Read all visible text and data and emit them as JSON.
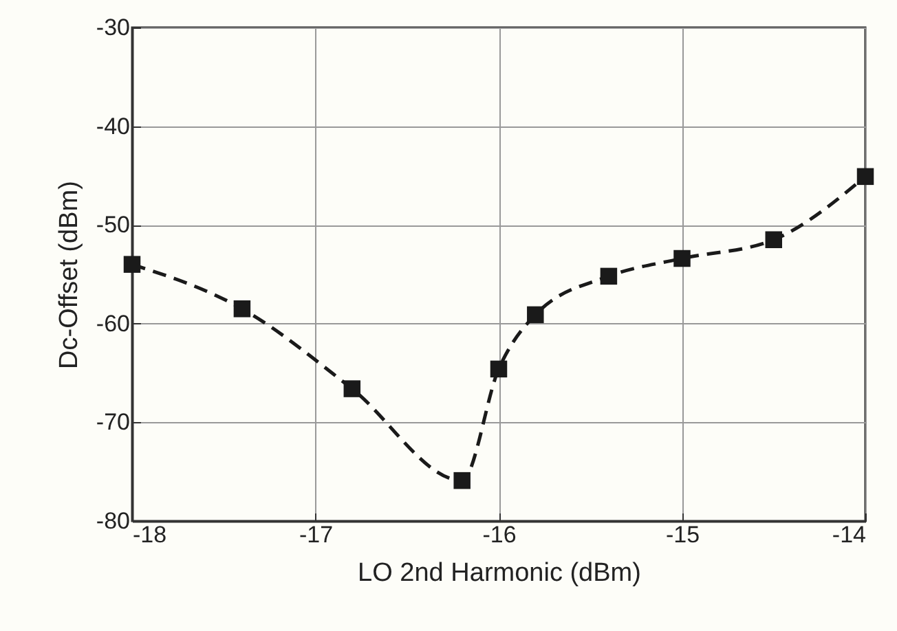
{
  "chart_data": {
    "type": "line",
    "xlabel": "LO 2nd Harmonic (dBm)",
    "ylabel": "Dc-Offset (dBm)",
    "x": [
      -18,
      -17.4,
      -16.8,
      -16.2,
      -16,
      -15.8,
      -15.4,
      -15,
      -14.5,
      -14
    ],
    "series": [
      {
        "color": "#1a1a1a",
        "values": [
          -54.0,
          -58.5,
          -66.6,
          -75.9,
          -64.6,
          -59.1,
          -55.2,
          -53.4,
          -51.5,
          -45.1
        ]
      }
    ],
    "xlim": [
      -18,
      -14
    ],
    "xticks": [
      -18,
      -17,
      -16,
      -15,
      -14
    ],
    "ylim": [
      -80,
      -30
    ],
    "yticks": [
      -80,
      -70,
      -60,
      -50,
      -40,
      -30
    ],
    "grid": true,
    "marker": "square",
    "line_style": "dashed"
  }
}
